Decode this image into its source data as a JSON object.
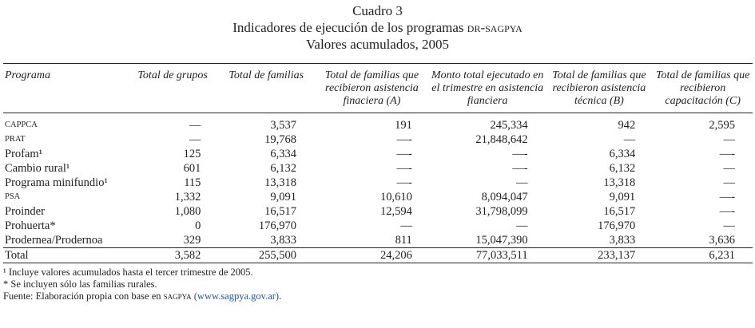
{
  "title": {
    "line1": "Cuadro 3",
    "line2": "Indicadores de ejecución de los programas",
    "line2_sc": "DR-SAGPyA",
    "line3": "Valores acumulados, 2005"
  },
  "headers": [
    "Programa",
    "Total de grupos",
    "Total de familias",
    "Total de familias que recibieron asistencia finaciera (A)",
    "Monto total ejecutado en el trimestre en asistencia fianciera",
    "Total de familias que recibieron asistencia técnica (B)",
    "Total de familias que recibieron capacitación (C)"
  ],
  "rows": [
    {
      "name": "CAPPCA",
      "small": true,
      "cells": [
        "—",
        "3,537",
        "191",
        "245,334",
        "942",
        "2,595"
      ]
    },
    {
      "name": "PRAT",
      "small": true,
      "cells": [
        "—",
        "19,768",
        "—-",
        "21,848,642",
        "—",
        "—"
      ]
    },
    {
      "name": "Profam¹",
      "cells": [
        "125",
        "6,334",
        "—-",
        "—-",
        "6,334",
        "—-"
      ]
    },
    {
      "name": "Cambio rural¹",
      "cells": [
        "601",
        "6,132",
        "—-",
        "—-",
        "6,132",
        "—"
      ]
    },
    {
      "name": "Programa minifundio¹",
      "cells": [
        "115",
        "13,318",
        "—-",
        "—",
        "13,318",
        "—"
      ]
    },
    {
      "name": "PSA",
      "small": true,
      "cells": [
        "1,332",
        "9,091",
        "10,610",
        "8,094,047",
        "9,091",
        "—-"
      ]
    },
    {
      "name": "Proinder",
      "cells": [
        "1,080",
        "16,517",
        "12,594",
        "31,798,099",
        "16,517",
        "—-"
      ]
    },
    {
      "name": "Prohuerta*",
      "cells": [
        "0",
        "176,970",
        "—",
        "—",
        "176,970",
        "—"
      ]
    },
    {
      "name": "Prodernea/Prodernoa",
      "cells": [
        "329",
        "3,833",
        "811",
        "15,047,390",
        "3,833",
        "3,636"
      ]
    }
  ],
  "total": {
    "name": "Total",
    "cells": [
      "3,582",
      "255,500",
      "24,206",
      "77,033,511",
      "233,137",
      "6,231"
    ]
  },
  "notes": {
    "n1": "¹ Incluye valores acumulados hasta el tercer trimestre de 2005.",
    "n2": "* Se incluyen sólo las familias rurales.",
    "source_prefix": "Fuente: Elaboración propia con base en",
    "source_sc": "SAGPyA",
    "source_link": "(www.sagpya.gov.ar)",
    "source_suffix": "."
  }
}
